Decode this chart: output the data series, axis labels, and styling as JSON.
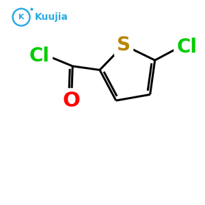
{
  "bg_color": "#ffffff",
  "bond_color": "#000000",
  "bond_width": 2.2,
  "S_color": "#b8860b",
  "Cl_color": "#00cc00",
  "O_color": "#ff0000",
  "S_label": "S",
  "Cl_label1": "Cl",
  "Cl_label2": "Cl",
  "O_label": "O",
  "font_size_atoms": 20,
  "font_size_logo": 10,
  "logo_text": "Kuujia",
  "logo_color": "#29abe2",
  "figsize": [
    3.0,
    3.0
  ],
  "dpi": 100,
  "xlim": [
    0,
    10
  ],
  "ylim": [
    0,
    10
  ]
}
